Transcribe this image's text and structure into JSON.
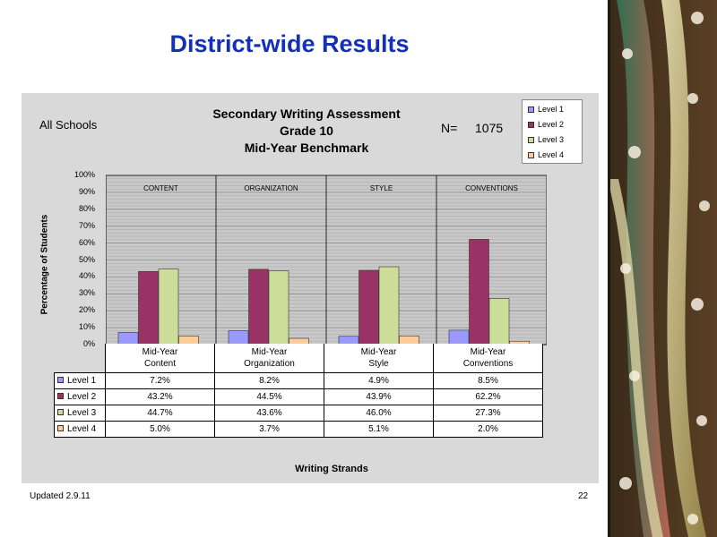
{
  "slide": {
    "title": "District-wide Results",
    "updated": "Updated  2.9.11",
    "page_number": "22"
  },
  "chart_header": {
    "scope": "All Schools",
    "title_lines": [
      "Secondary Writing Assessment",
      "Grade 10",
      "Mid-Year Benchmark"
    ],
    "n_label": "N=",
    "n_value": "1075"
  },
  "chart_data": {
    "type": "bar",
    "title": "Secondary Writing Assessment Grade 10 Mid-Year Benchmark",
    "ylabel": "Percentage of Students",
    "xlabel": "Writing Strands",
    "ylim": [
      0,
      100
    ],
    "y_ticks": [
      "0%",
      "10%",
      "20%",
      "30%",
      "40%",
      "50%",
      "60%",
      "70%",
      "80%",
      "90%",
      "100%"
    ],
    "grid": true,
    "legend_position": "top-right",
    "group_labels": [
      "CONTENT",
      "ORGANIZATION",
      "STYLE",
      "CONVENTIONS"
    ],
    "categories": [
      [
        "Mid-Year",
        "Content"
      ],
      [
        "Mid-Year",
        "Organization"
      ],
      [
        "Mid-Year",
        "Style"
      ],
      [
        "Mid-Year",
        "Conventions"
      ]
    ],
    "series": [
      {
        "name": "Level 1",
        "color": "#9999ff",
        "values": [
          7.2,
          8.2,
          4.9,
          8.5
        ],
        "labels": [
          "7.2%",
          "8.2%",
          "4.9%",
          "8.5%"
        ]
      },
      {
        "name": "Level 2",
        "color": "#993366",
        "values": [
          43.2,
          44.5,
          43.9,
          62.2
        ],
        "labels": [
          "43.2%",
          "44.5%",
          "43.9%",
          "62.2%"
        ]
      },
      {
        "name": "Level 3",
        "color": "#ccdd99",
        "values": [
          44.7,
          43.6,
          46.0,
          27.3
        ],
        "labels": [
          "44.7%",
          "43.6%",
          "46.0%",
          "27.3%"
        ]
      },
      {
        "name": "Level 4",
        "color": "#ffcc99",
        "values": [
          5.0,
          3.7,
          5.1,
          2.0
        ],
        "labels": [
          "5.0%",
          "3.7%",
          "5.1%",
          "2.0%"
        ]
      }
    ]
  }
}
